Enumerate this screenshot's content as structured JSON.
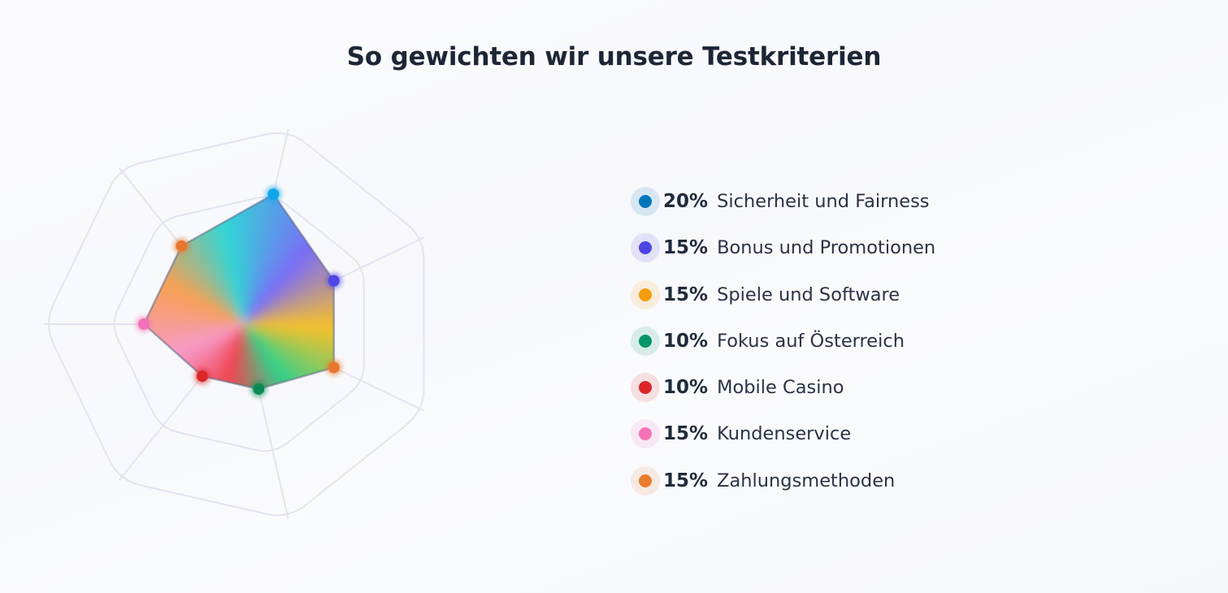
{
  "page": {
    "title": "So gewichten wir unsere Testkriterien"
  },
  "chart_data": {
    "type": "radar",
    "title": "So gewichten wir unsere Testkriterien",
    "unit": "%",
    "rmax": 30,
    "rings": 3,
    "grid": true,
    "legend_position": "right",
    "categories": [
      "Sicherheit und Fairness",
      "Bonus und Promotionen",
      "Spiele und Software",
      "Fokus auf Österreich",
      "Mobile Casino",
      "Kundenservice",
      "Zahlungsmethoden"
    ],
    "values": [
      20,
      15,
      15,
      10,
      10,
      15,
      15
    ],
    "value_labels": [
      "20%",
      "15%",
      "15%",
      "10%",
      "10%",
      "15%",
      "15%"
    ],
    "colors": [
      "#0277bd",
      "#4f46e5",
      "#f59e0b",
      "#059669",
      "#dc2626",
      "#f472b6",
      "#ea7b2e"
    ],
    "point_colors": [
      "#0ea5e9",
      "#4f46e5",
      "#e8772e",
      "#0a8a55",
      "#dc2626",
      "#f472b6",
      "#e8772e"
    ],
    "fill_colors": [
      "#2fd6d6",
      "#7b6cf7",
      "#f6c02a",
      "#2ed18a",
      "#f0434f",
      "#f79ac8",
      "#f7a052"
    ]
  }
}
